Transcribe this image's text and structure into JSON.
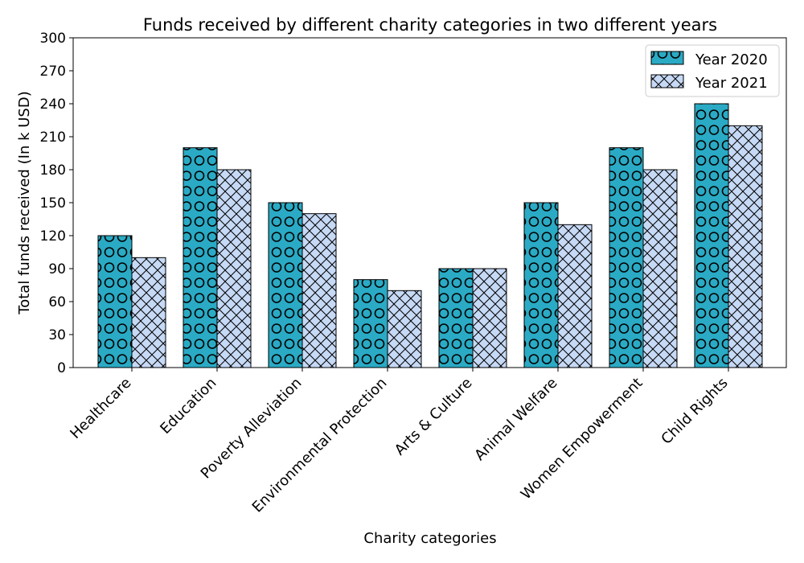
{
  "chart_data": {
    "type": "bar",
    "title": "Funds received by different charity categories in two different years",
    "xlabel": "Charity categories",
    "ylabel": "Total funds received (In k USD)",
    "ylim": [
      0,
      300
    ],
    "yticks": [
      0,
      30,
      60,
      90,
      120,
      150,
      180,
      210,
      240,
      270,
      300
    ],
    "categories": [
      "Healthcare",
      "Education",
      "Poverty Alleviation",
      "Environmental Protection",
      "Arts & Culture",
      "Animal Welfare",
      "Women Empowerment",
      "Child Rights"
    ],
    "series": [
      {
        "name": "Year 2020",
        "values": [
          120,
          200,
          150,
          80,
          90,
          150,
          200,
          240
        ],
        "color": "#2aaac4",
        "hatch": "circles"
      },
      {
        "name": "Year 2021",
        "values": [
          100,
          180,
          140,
          70,
          90,
          130,
          180,
          220
        ],
        "color": "#c6d9f5",
        "hatch": "crosshatch"
      }
    ],
    "legend_position": "top-right",
    "grid": false
  }
}
